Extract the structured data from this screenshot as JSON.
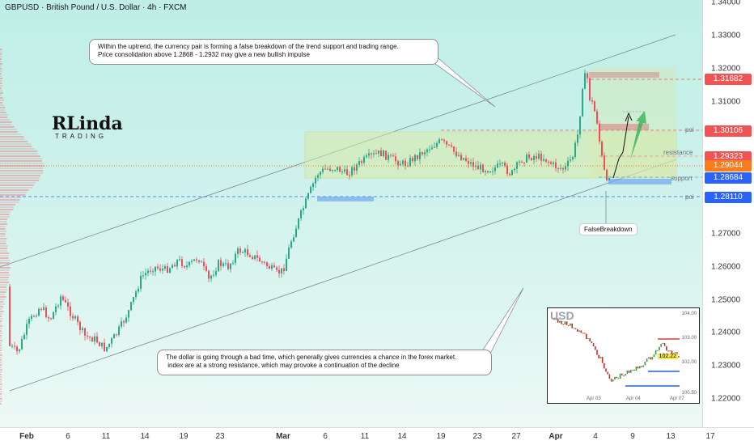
{
  "header": {
    "title": "GBPUSD · British Pound / U.S. Dollar · 4h · FXCM"
  },
  "price_axis": {
    "ticks": [
      "1.34000",
      "1.33000",
      "1.32000",
      "1.31000",
      "1.30000",
      "1.29000",
      "1.28000",
      "1.27000",
      "1.26000",
      "1.25000",
      "1.24000",
      "1.23000",
      "1.22000"
    ],
    "badges": [
      {
        "value": "1.31682",
        "color": "#f05353"
      },
      {
        "value": "1.30106",
        "color": "#f05353"
      },
      {
        "value": "1.29323",
        "color": "#f05353"
      },
      {
        "value": "1.29044",
        "color": "#f77c1b"
      },
      {
        "value": "1.28684",
        "color": "#2962ff"
      },
      {
        "value": "1.28110",
        "color": "#2962ff"
      }
    ]
  },
  "time_axis": {
    "labels": [
      {
        "text": "Feb",
        "bold": true
      },
      {
        "text": "6",
        "bold": false
      },
      {
        "text": "11",
        "bold": false
      },
      {
        "text": "14",
        "bold": false
      },
      {
        "text": "19",
        "bold": false
      },
      {
        "text": "23",
        "bold": false
      },
      {
        "text": "Mar",
        "bold": true
      },
      {
        "text": "6",
        "bold": false
      },
      {
        "text": "11",
        "bold": false
      },
      {
        "text": "14",
        "bold": false
      },
      {
        "text": "19",
        "bold": false
      },
      {
        "text": "23",
        "bold": false
      },
      {
        "text": "27",
        "bold": false
      },
      {
        "text": "Apr",
        "bold": true
      },
      {
        "text": "4",
        "bold": false
      },
      {
        "text": "9",
        "bold": false
      },
      {
        "text": "13",
        "bold": false
      },
      {
        "text": "17",
        "bold": false
      }
    ]
  },
  "annotations": {
    "top_callout_line1": "Within the uptrend, the currency pair is forming a false breakdown of the trend support and trading range.",
    "top_callout_line2": "Price consolidation above 1.2868 - 1.2932 may give a new bullish impulse",
    "bottom_callout_line1": "The dollar is going through a bad time, which generally gives currencies a chance in the forex market.",
    "bottom_callout_line2": " index are at a strong resistance, which may provoke a continuation of the decline",
    "false_breakdown": "FalseBreakdown",
    "zones": {
      "poi_top": "poi",
      "resistance": "resistance",
      "support": "support",
      "poi_bottom": "poi"
    }
  },
  "logo": {
    "main": "RLinda",
    "sub": "TRADING"
  },
  "inset": {
    "title": "USD",
    "current_value": "102.22",
    "price_ticks": [
      "104.00",
      "103.50",
      "103.00",
      "102.50",
      "102.00",
      "101.50",
      "101.00",
      "100.50"
    ],
    "dates": [
      "Apr 03",
      "Apr 04",
      "Apr 07"
    ]
  },
  "colors": {
    "bull": "#2aa987",
    "bear": "#ef4d5c",
    "accent_green": "#3fb55f"
  },
  "chart_data": {
    "type": "candlestick",
    "symbol": "GBPUSD",
    "timeframe": "4h",
    "ylim": [
      1.215,
      1.341
    ],
    "levels": {
      "poi_top": 1.30106,
      "resistance": 1.29323,
      "current": 1.29044,
      "support": 1.28684,
      "poi_bottom": 1.2811,
      "high": 1.31682
    },
    "path_points": [
      [
        0,
        1.254
      ],
      [
        12,
        1.236
      ],
      [
        22,
        1.234
      ],
      [
        35,
        1.243
      ],
      [
        50,
        1.248
      ],
      [
        62,
        1.244
      ],
      [
        75,
        1.251
      ],
      [
        90,
        1.245
      ],
      [
        105,
        1.239
      ],
      [
        118,
        1.238
      ],
      [
        130,
        1.235
      ],
      [
        145,
        1.24
      ],
      [
        160,
        1.247
      ],
      [
        175,
        1.257
      ],
      [
        190,
        1.26
      ],
      [
        205,
        1.259
      ],
      [
        220,
        1.262
      ],
      [
        232,
        1.26
      ],
      [
        245,
        1.263
      ],
      [
        258,
        1.256
      ],
      [
        270,
        1.261
      ],
      [
        282,
        1.26
      ],
      [
        295,
        1.265
      ],
      [
        308,
        1.264
      ],
      [
        320,
        1.262
      ],
      [
        332,
        1.26
      ],
      [
        342,
        1.258
      ],
      [
        350,
        1.259
      ],
      [
        360,
        1.268
      ],
      [
        372,
        1.276
      ],
      [
        382,
        1.282
      ],
      [
        392,
        1.288
      ],
      [
        402,
        1.2895
      ],
      [
        415,
        1.29
      ],
      [
        428,
        1.288
      ],
      [
        440,
        1.2905
      ],
      [
        455,
        1.293
      ],
      [
        470,
        1.2945
      ],
      [
        485,
        1.2925
      ],
      [
        500,
        1.291
      ],
      [
        515,
        1.2935
      ],
      [
        530,
        1.296
      ],
      [
        545,
        1.298
      ],
      [
        560,
        1.295
      ],
      [
        575,
        1.2925
      ],
      [
        590,
        1.29
      ],
      [
        605,
        1.2895
      ],
      [
        620,
        1.2905
      ],
      [
        632,
        1.288
      ],
      [
        645,
        1.2925
      ],
      [
        660,
        1.2935
      ],
      [
        672,
        1.293
      ],
      [
        685,
        1.2905
      ],
      [
        698,
        1.2895
      ],
      [
        708,
        1.2935
      ],
      [
        715,
        1.301
      ],
      [
        720,
        1.315
      ],
      [
        725,
        1.319
      ],
      [
        729,
        1.311
      ],
      [
        733,
        1.309
      ],
      [
        738,
        1.304
      ],
      [
        742,
        1.296
      ],
      [
        746,
        1.29
      ],
      [
        750,
        1.285
      ],
      [
        754,
        1.289
      ]
    ]
  }
}
